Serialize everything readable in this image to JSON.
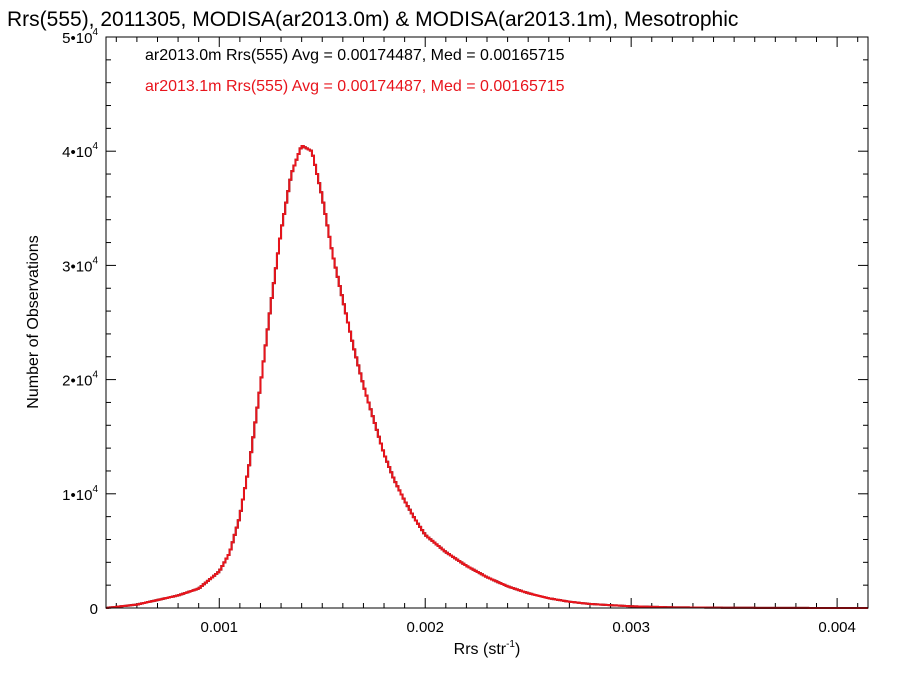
{
  "chart_data": {
    "type": "line",
    "title": "Rrs(555), 2011305, MODISA(ar2013.0m) & MODISA(ar2013.1m), Mesotrophic",
    "xlabel": "Rrs (str",
    "xlabel_sup": "-1",
    "xlabel_end": ")",
    "ylabel": "Number of Observations",
    "xlim": [
      0.00045,
      0.00415
    ],
    "ylim": [
      0,
      50000
    ],
    "x_ticks": [
      0.001,
      0.002,
      0.003,
      0.004
    ],
    "x_tick_labels": [
      "0.001",
      "0.002",
      "0.003",
      "0.004"
    ],
    "y_ticks": [
      0,
      10000,
      20000,
      30000,
      40000,
      50000
    ],
    "y_tick_labels": [
      {
        "base": "0",
        "exp": ""
      },
      {
        "base": "1•10",
        "exp": "4"
      },
      {
        "base": "2•10",
        "exp": "4"
      },
      {
        "base": "3•10",
        "exp": "4"
      },
      {
        "base": "4•10",
        "exp": "4"
      },
      {
        "base": "5•10",
        "exp": "4"
      }
    ],
    "grid": false,
    "legend_placement": "top-left",
    "legend": [
      {
        "text": "ar2013.0m Rrs(555) Avg = 0.00174487, Med = 0.00165715",
        "color": "#000000"
      },
      {
        "text": "ar2013.1m Rrs(555) Avg = 0.00174487, Med = 0.00165715",
        "color": "#e8141c"
      }
    ],
    "series": [
      {
        "color": "#000000",
        "x": [
          0.00045,
          0.0006,
          0.0007,
          0.0008,
          0.0009,
          0.001,
          0.00105,
          0.0011,
          0.00115,
          0.0012,
          0.00125,
          0.0013,
          0.00135,
          0.0014,
          0.00145,
          0.0015,
          0.00155,
          0.0016,
          0.00165,
          0.0017,
          0.00175,
          0.0018,
          0.00185,
          0.0019,
          0.00195,
          0.002,
          0.0021,
          0.0022,
          0.0023,
          0.0024,
          0.0025,
          0.0026,
          0.0027,
          0.0028,
          0.003,
          0.0032,
          0.0035,
          0.004,
          0.00415
        ],
        "y": [
          0,
          300,
          700,
          1100,
          1700,
          3200,
          4800,
          8000,
          13000,
          19500,
          26500,
          33000,
          38000,
          40500,
          40000,
          36000,
          31000,
          27000,
          23000,
          19500,
          16500,
          13500,
          11200,
          9400,
          7800,
          6400,
          4900,
          3700,
          2700,
          1900,
          1300,
          850,
          550,
          350,
          150,
          60,
          20,
          0,
          0
        ]
      },
      {
        "color": "#e8141c",
        "x": [
          0.00045,
          0.0006,
          0.0007,
          0.0008,
          0.0009,
          0.001,
          0.00105,
          0.0011,
          0.00115,
          0.0012,
          0.00125,
          0.0013,
          0.00135,
          0.0014,
          0.00145,
          0.0015,
          0.00155,
          0.0016,
          0.00165,
          0.0017,
          0.00175,
          0.0018,
          0.00185,
          0.0019,
          0.00195,
          0.002,
          0.0021,
          0.0022,
          0.0023,
          0.0024,
          0.0025,
          0.0026,
          0.0027,
          0.0028,
          0.003,
          0.0032,
          0.0035,
          0.004,
          0.00415
        ],
        "y": [
          0,
          300,
          700,
          1100,
          1700,
          3200,
          4800,
          8000,
          13000,
          19500,
          26500,
          33000,
          38000,
          40500,
          40000,
          36000,
          31000,
          27000,
          23000,
          19500,
          16500,
          13500,
          11200,
          9400,
          7800,
          6400,
          4900,
          3700,
          2700,
          1900,
          1300,
          850,
          550,
          350,
          150,
          60,
          20,
          0,
          0
        ]
      }
    ]
  }
}
